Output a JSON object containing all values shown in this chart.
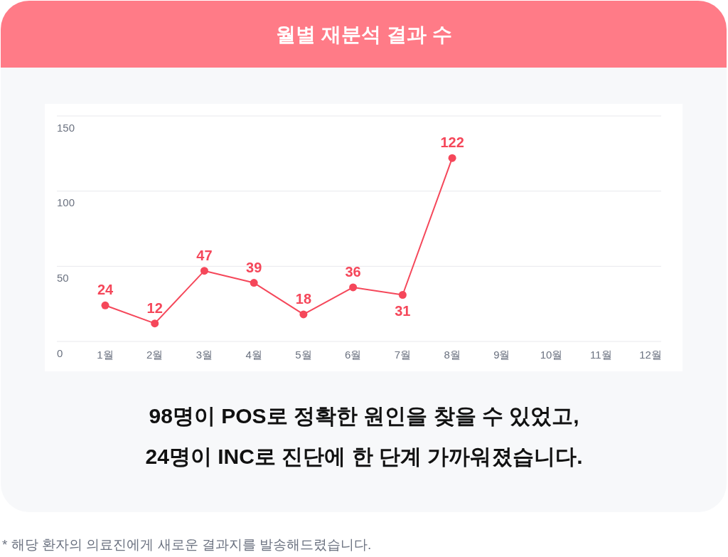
{
  "chart_data": {
    "type": "line",
    "title": "월별 재분석 결과 수",
    "categories": [
      "1월",
      "2월",
      "3월",
      "4월",
      "5월",
      "6월",
      "7월",
      "8월",
      "9월",
      "10월",
      "11월",
      "12월"
    ],
    "series": [
      {
        "color": "#f5475a",
        "values": [
          24,
          12,
          47,
          39,
          18,
          36,
          31,
          122,
          null,
          null,
          null,
          null
        ]
      }
    ],
    "ylim": [
      0,
      150
    ],
    "yticks": [
      0,
      50,
      100,
      150
    ],
    "grid": "y",
    "marker": "circle",
    "line_style": "solid",
    "data_labels": true,
    "annotations": [
      "98명이 POS로 정확한 원인을 찾을 수 있었고,",
      "24명이 INC로 진단에 한 단계 가까워졌습니다.",
      "* 해당 환자의 의료진에게 새로운 결과지를 발송해드렸습니다."
    ]
  }
}
